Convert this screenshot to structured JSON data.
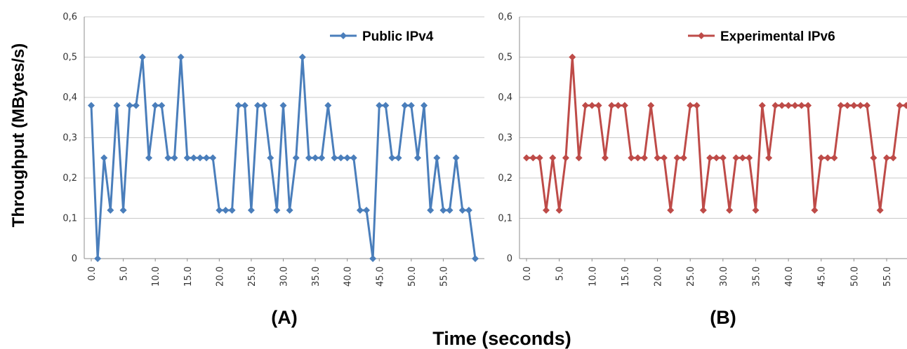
{
  "figure": {
    "ylabel": "Throughput (MBytes/s)",
    "xlabel": "Time (seconds)"
  },
  "chart_data": [
    {
      "type": "line",
      "panel_label": "(A)",
      "ylim": [
        0,
        0.6
      ],
      "yticks": [
        0,
        0.1,
        0.2,
        0.3,
        0.4,
        0.5,
        0.6
      ],
      "ytick_labels": [
        "0",
        "0,1",
        "0,2",
        "0,3",
        "0,4",
        "0,5",
        "0,6"
      ],
      "xlim": [
        0,
        60
      ],
      "xticks": [
        0,
        5,
        10,
        15,
        20,
        25,
        30,
        35,
        40,
        45,
        50,
        55
      ],
      "xtick_labels": [
        "0.0",
        "5.0",
        "10.0",
        "15.0",
        "20.0",
        "25.0",
        "30.0",
        "35.0",
        "40.0",
        "45.0",
        "50.0",
        "55.0"
      ],
      "grid": true,
      "legend_position": "top-right",
      "series": [
        {
          "name": "Public IPv4",
          "color": "#4a7ebb",
          "x": [
            0,
            1,
            2,
            3,
            4,
            5,
            6,
            7,
            8,
            9,
            10,
            11,
            12,
            13,
            14,
            15,
            16,
            17,
            18,
            19,
            20,
            21,
            22,
            23,
            24,
            25,
            26,
            27,
            28,
            29,
            30,
            31,
            32,
            33,
            34,
            35,
            36,
            37,
            38,
            39,
            40,
            41,
            42,
            43,
            44,
            45,
            46,
            47,
            48,
            49,
            50,
            51,
            52,
            53,
            54,
            55,
            56,
            57,
            58,
            59,
            60
          ],
          "values": [
            0.38,
            0,
            0.25,
            0.12,
            0.38,
            0.12,
            0.38,
            0.38,
            0.5,
            0.25,
            0.38,
            0.38,
            0.25,
            0.25,
            0.5,
            0.25,
            0.25,
            0.25,
            0.25,
            0.25,
            0.12,
            0.12,
            0.12,
            0.38,
            0.38,
            0.12,
            0.38,
            0.38,
            0.25,
            0.12,
            0.38,
            0.12,
            0.25,
            0.5,
            0.25,
            0.25,
            0.25,
            0.38,
            0.25,
            0.25,
            0.25,
            0.25,
            0.12,
            0.12,
            0,
            0.38,
            0.38,
            0.25,
            0.25,
            0.38,
            0.38,
            0.25,
            0.38,
            0.12,
            0.25,
            0.12,
            0.12,
            0.25,
            0.12,
            0.12,
            0
          ]
        }
      ]
    },
    {
      "type": "line",
      "panel_label": "(B)",
      "ylim": [
        0,
        0.6
      ],
      "yticks": [
        0,
        0.1,
        0.2,
        0.3,
        0.4,
        0.5,
        0.6
      ],
      "ytick_labels": [
        "0",
        "0,1",
        "0,2",
        "0,3",
        "0,4",
        "0,5",
        "0,6"
      ],
      "xlim": [
        0,
        58
      ],
      "xticks": [
        0,
        5,
        10,
        15,
        20,
        25,
        30,
        35,
        40,
        45,
        50,
        55
      ],
      "xtick_labels": [
        "0.0",
        "5.0",
        "10.0",
        "15.0",
        "20.0",
        "25.0",
        "30.0",
        "35.0",
        "40.0",
        "45.0",
        "50.0",
        "55.0"
      ],
      "grid": true,
      "legend_position": "top-right",
      "series": [
        {
          "name": "Experimental IPv6",
          "color": "#be4b48",
          "x": [
            0,
            1,
            2,
            3,
            4,
            5,
            6,
            7,
            8,
            9,
            10,
            11,
            12,
            13,
            14,
            15,
            16,
            17,
            18,
            19,
            20,
            21,
            22,
            23,
            24,
            25,
            26,
            27,
            28,
            29,
            30,
            31,
            32,
            33,
            34,
            35,
            36,
            37,
            38,
            39,
            40,
            41,
            42,
            43,
            44,
            45,
            46,
            47,
            48,
            49,
            50,
            51,
            52,
            53,
            54,
            55,
            56,
            57,
            58
          ],
          "values": [
            0.25,
            0.25,
            0.25,
            0.12,
            0.25,
            0.12,
            0.25,
            0.5,
            0.25,
            0.38,
            0.38,
            0.38,
            0.25,
            0.38,
            0.38,
            0.38,
            0.25,
            0.25,
            0.25,
            0.38,
            0.25,
            0.25,
            0.12,
            0.25,
            0.25,
            0.38,
            0.38,
            0.12,
            0.25,
            0.25,
            0.25,
            0.12,
            0.25,
            0.25,
            0.25,
            0.12,
            0.38,
            0.25,
            0.38,
            0.38,
            0.38,
            0.38,
            0.38,
            0.38,
            0.12,
            0.25,
            0.25,
            0.25,
            0.38,
            0.38,
            0.38,
            0.38,
            0.38,
            0.25,
            0.12,
            0.25,
            0.25,
            0.38,
            0.38
          ]
        }
      ]
    }
  ]
}
